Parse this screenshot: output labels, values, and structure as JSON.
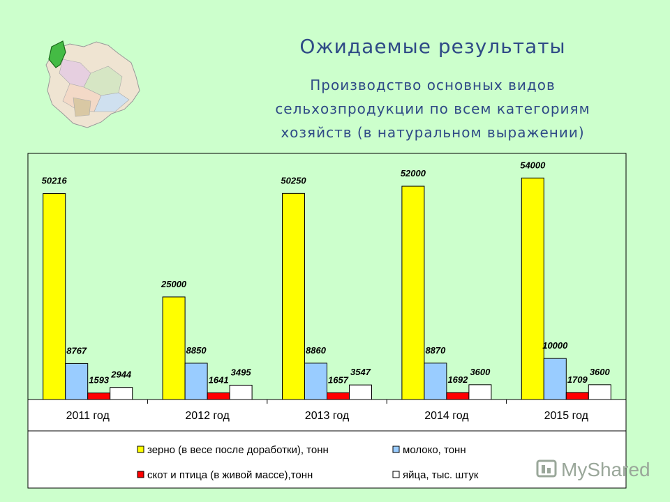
{
  "header": {
    "title": "Ожидаемые результаты",
    "subtitle_lines": [
      "Производство основных видов",
      "сельхозпродукции по всем категориям",
      "хозяйств (в натуральном выражении)"
    ]
  },
  "watermark": {
    "text": "MyShared"
  },
  "chart_data": {
    "type": "bar",
    "title": "",
    "xlabel": "",
    "ylabel": "",
    "categories": [
      "2011 год",
      "2012 год",
      "2013 год",
      "2014 год",
      "2015 год"
    ],
    "ylim": [
      0,
      60000
    ],
    "grid": false,
    "legend_position": "bottom",
    "series": [
      {
        "name": "зерно (в весе после доработки), тонн",
        "color": "#ffff00",
        "values": [
          50216,
          25000,
          50250,
          52000,
          54000
        ]
      },
      {
        "name": "молоко, тонн",
        "color": "#99ccff",
        "values": [
          8767,
          8850,
          8860,
          8870,
          10000
        ]
      },
      {
        "name": "скот и птица (в живой массе),тонн",
        "color": "#ff0000",
        "values": [
          1593,
          1641,
          1657,
          1692,
          1709
        ]
      },
      {
        "name": "яйца, тыс. штук",
        "color": "#ffffff",
        "values": [
          2944,
          3495,
          3547,
          3600,
          3600
        ]
      }
    ]
  }
}
